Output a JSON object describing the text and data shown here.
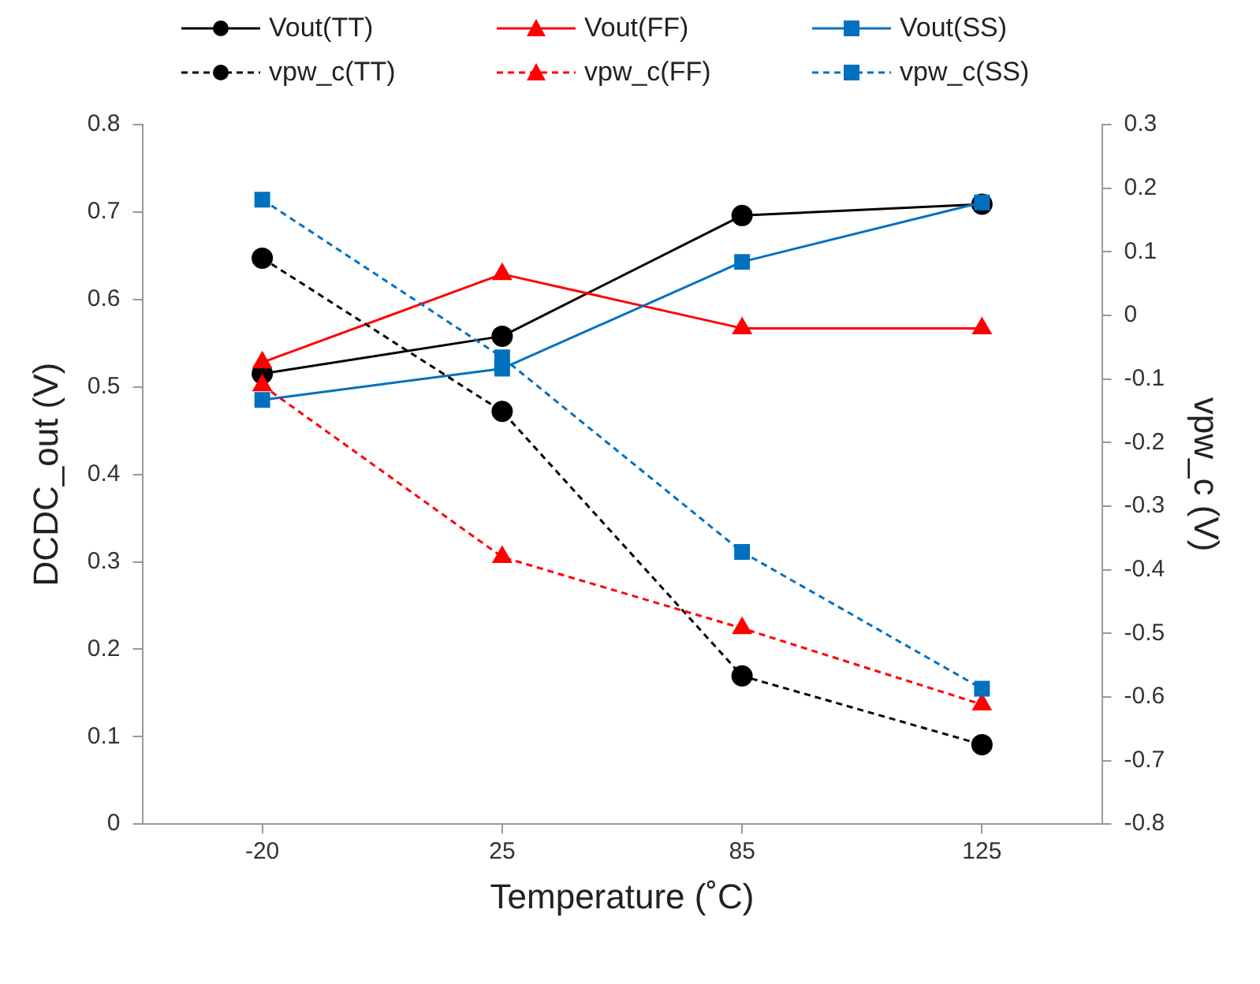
{
  "chart_data": {
    "type": "line",
    "xlabel": "Temperature (˚C)",
    "ylabel": "DCDC_out (V)",
    "y2label": "vpw_c (V)",
    "categories": [
      "-20",
      "25",
      "85",
      "125"
    ],
    "ylim": [
      0,
      0.8
    ],
    "yticks": [
      0,
      0.1,
      0.2,
      0.3,
      0.4,
      0.5,
      0.6,
      0.7,
      0.8
    ],
    "y2lim": [
      -0.8,
      0.3
    ],
    "y2ticks": [
      -0.8,
      -0.7,
      -0.6,
      -0.5,
      -0.4,
      -0.3,
      -0.2,
      -0.1,
      0,
      0.1,
      0.2,
      0.3
    ],
    "grid": false,
    "legend": "top",
    "series": [
      {
        "name": "Vout(TT)",
        "color": "#000000",
        "marker": "circle",
        "line_style": "solid",
        "values": [
          0.515,
          0.558,
          0.696,
          0.709
        ]
      },
      {
        "name": "Vout(FF)",
        "color": "#ff0000",
        "marker": "triangle",
        "line_style": "solid",
        "values": [
          0.528,
          0.629,
          0.567,
          0.567
        ]
      },
      {
        "name": "Vout(SS)",
        "color": "#0070c0",
        "marker": "square",
        "line_style": "solid",
        "values": [
          0.485,
          0.521,
          0.643,
          0.711
        ]
      },
      {
        "name": "vpw_c(TT)",
        "color": "#000000",
        "marker": "circle",
        "line_style": "dashed",
        "axis": "y2",
        "values": [
          0.09,
          -0.151,
          -0.567,
          -0.675
        ]
      },
      {
        "name": "vpw_c(FF)",
        "color": "#ff0000",
        "marker": "triangle",
        "line_style": "dashed",
        "axis": "y2",
        "values": [
          -0.11,
          -0.38,
          -0.492,
          -0.612
        ]
      },
      {
        "name": "vpw_c(SS)",
        "color": "#0070c0",
        "marker": "square",
        "line_style": "dashed",
        "axis": "y2",
        "values": [
          0.182,
          -0.066,
          -0.372,
          -0.587
        ]
      }
    ]
  }
}
